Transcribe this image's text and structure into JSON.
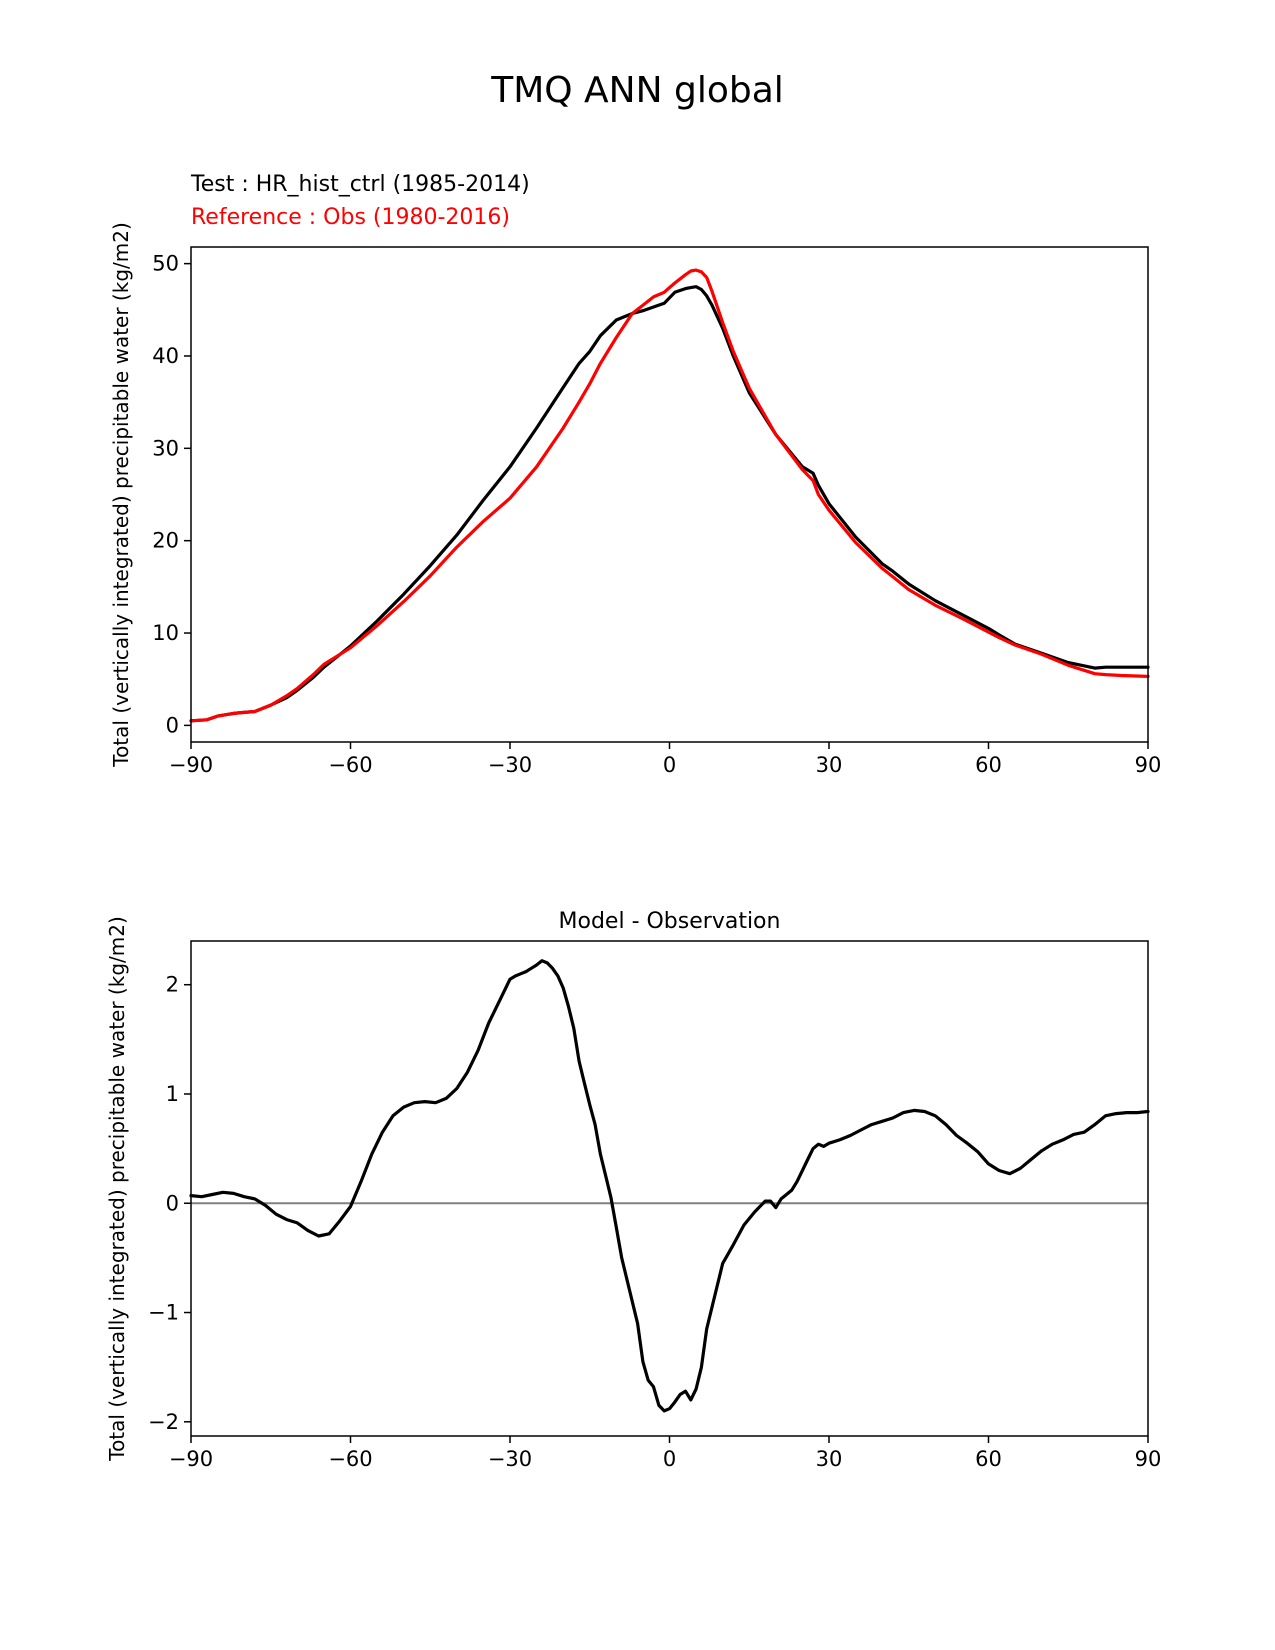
{
  "figure": {
    "title": "TMQ ANN global",
    "legend_test": "Test : HR_hist_ctrl (1985-2014)",
    "legend_ref": "Reference : Obs (1980-2016)"
  },
  "chart_data": [
    {
      "type": "line",
      "title": "",
      "xlabel": "",
      "ylabel": "Total (vertically integrated) precipitable water (kg/m2)",
      "xlim": [
        -90,
        90
      ],
      "ylim": [
        -1.8,
        51.8
      ],
      "xticks": [
        -90,
        -60,
        -30,
        0,
        30,
        60,
        90
      ],
      "xtick_labels": [
        "−90",
        "−60",
        "−30",
        "0",
        "30",
        "60",
        "90"
      ],
      "yticks": [
        0,
        10,
        20,
        30,
        40,
        50
      ],
      "ytick_labels": [
        "0",
        "10",
        "20",
        "30",
        "40",
        "50"
      ],
      "grid": false,
      "series": [
        {
          "name": "Test : HR_hist_ctrl (1985-2014)",
          "color": "#000000",
          "x": [
            -90,
            -87,
            -85,
            -82,
            -80,
            -78,
            -75,
            -72,
            -70,
            -67,
            -65,
            -60,
            -55,
            -50,
            -45,
            -40,
            -35,
            -30,
            -25,
            -20,
            -17,
            -15,
            -13,
            -10,
            -7,
            -5,
            -3,
            -1,
            0,
            1,
            3,
            4,
            5,
            6,
            7,
            8,
            10,
            12,
            15,
            20,
            25,
            27,
            28,
            30,
            35,
            40,
            42,
            45,
            50,
            55,
            60,
            62,
            65,
            70,
            75,
            80,
            82,
            85,
            90
          ],
          "y": [
            0.5,
            0.6,
            1.0,
            1.3,
            1.4,
            1.5,
            2.2,
            3.0,
            3.8,
            5.2,
            6.3,
            8.6,
            11.3,
            14.2,
            17.3,
            20.6,
            24.4,
            28.0,
            32.2,
            36.6,
            39.2,
            40.5,
            42.2,
            43.9,
            44.6,
            44.9,
            45.3,
            45.7,
            46.3,
            46.9,
            47.3,
            47.4,
            47.5,
            47.2,
            46.5,
            45.5,
            43.0,
            40.0,
            36.0,
            31.5,
            28.0,
            27.3,
            26.0,
            24.0,
            20.4,
            17.5,
            16.7,
            15.3,
            13.5,
            12.0,
            10.5,
            9.8,
            8.8,
            7.8,
            6.8,
            6.2,
            6.3,
            6.3,
            6.3
          ]
        },
        {
          "name": "Reference : Obs (1980-2016)",
          "color": "#ff0000",
          "x": [
            -90,
            -87,
            -85,
            -82,
            -80,
            -78,
            -75,
            -72,
            -70,
            -67,
            -65,
            -60,
            -55,
            -50,
            -45,
            -40,
            -35,
            -30,
            -25,
            -20,
            -17,
            -15,
            -13,
            -10,
            -7,
            -5,
            -3,
            -1,
            0,
            1,
            3,
            4,
            5,
            6,
            7,
            8,
            10,
            12,
            15,
            20,
            25,
            27,
            28,
            30,
            35,
            40,
            42,
            45,
            50,
            55,
            60,
            62,
            65,
            70,
            75,
            80,
            82,
            85,
            90
          ],
          "y": [
            0.5,
            0.6,
            1.0,
            1.3,
            1.4,
            1.5,
            2.2,
            3.2,
            4.0,
            5.5,
            6.6,
            8.4,
            10.8,
            13.4,
            16.2,
            19.3,
            22.1,
            24.6,
            28.0,
            32.2,
            35.0,
            37.0,
            39.2,
            42.0,
            44.6,
            45.5,
            46.4,
            46.9,
            47.4,
            47.9,
            48.8,
            49.2,
            49.3,
            49.1,
            48.5,
            47.0,
            43.6,
            40.5,
            36.5,
            31.5,
            27.7,
            26.5,
            25.0,
            23.3,
            19.8,
            17.0,
            16.1,
            14.7,
            13.0,
            11.6,
            10.1,
            9.5,
            8.7,
            7.7,
            6.5,
            5.6,
            5.5,
            5.4,
            5.3
          ]
        }
      ]
    },
    {
      "type": "line",
      "title": "Model - Observation",
      "xlabel": "",
      "ylabel": "Total (vertically integrated) precipitable water (kg/m2)",
      "xlim": [
        -90,
        90
      ],
      "ylim": [
        -2.13,
        2.4
      ],
      "xticks": [
        -90,
        -60,
        -30,
        0,
        30,
        60,
        90
      ],
      "xtick_labels": [
        "−90",
        "−60",
        "−30",
        "0",
        "30",
        "60",
        "90"
      ],
      "yticks": [
        -2,
        -1,
        0,
        1,
        2
      ],
      "ytick_labels": [
        "−2",
        "−1",
        "0",
        "1",
        "2"
      ],
      "grid": false,
      "zero_line": {
        "y": 0,
        "color": "#808080"
      },
      "series": [
        {
          "name": "Model - Observation",
          "color": "#000000",
          "x": [
            -90,
            -88,
            -86,
            -84,
            -82,
            -80,
            -78,
            -76,
            -74,
            -72,
            -70,
            -68,
            -66,
            -64,
            -62,
            -60,
            -58,
            -56,
            -54,
            -52,
            -50,
            -48,
            -46,
            -44,
            -42,
            -40,
            -38,
            -36,
            -34,
            -32,
            -30,
            -29,
            -28,
            -27,
            -26,
            -25,
            -24,
            -23,
            -22,
            -21,
            -20,
            -19,
            -18,
            -17,
            -16,
            -15,
            -14,
            -13,
            -12,
            -11,
            -10,
            -9,
            -8,
            -7,
            -6,
            -5,
            -4,
            -3,
            -2,
            -1,
            0,
            1,
            2,
            3,
            4,
            5,
            6,
            7,
            8,
            10,
            12,
            14,
            16,
            18,
            19,
            20,
            21,
            22,
            23,
            24,
            25,
            26,
            27,
            28,
            29,
            30,
            32,
            34,
            36,
            38,
            40,
            42,
            44,
            46,
            48,
            50,
            52,
            54,
            56,
            58,
            60,
            62,
            64,
            66,
            68,
            70,
            72,
            74,
            76,
            78,
            80,
            82,
            84,
            86,
            88,
            90
          ],
          "y": [
            0.07,
            0.06,
            0.08,
            0.1,
            0.09,
            0.06,
            0.04,
            -0.02,
            -0.1,
            -0.15,
            -0.18,
            -0.25,
            -0.3,
            -0.28,
            -0.16,
            -0.03,
            0.2,
            0.45,
            0.65,
            0.8,
            0.88,
            0.92,
            0.93,
            0.92,
            0.96,
            1.05,
            1.2,
            1.4,
            1.65,
            1.85,
            2.05,
            2.08,
            2.1,
            2.12,
            2.15,
            2.18,
            2.22,
            2.2,
            2.15,
            2.08,
            1.97,
            1.8,
            1.6,
            1.3,
            1.1,
            0.9,
            0.72,
            0.45,
            0.25,
            0.05,
            -0.22,
            -0.5,
            -0.7,
            -0.9,
            -1.1,
            -1.45,
            -1.62,
            -1.68,
            -1.85,
            -1.9,
            -1.88,
            -1.82,
            -1.75,
            -1.72,
            -1.8,
            -1.7,
            -1.5,
            -1.15,
            -0.95,
            -0.55,
            -0.38,
            -0.2,
            -0.08,
            0.02,
            0.02,
            -0.04,
            0.04,
            0.08,
            0.12,
            0.2,
            0.3,
            0.4,
            0.5,
            0.54,
            0.52,
            0.55,
            0.58,
            0.62,
            0.67,
            0.72,
            0.75,
            0.78,
            0.83,
            0.85,
            0.84,
            0.8,
            0.72,
            0.62,
            0.55,
            0.47,
            0.36,
            0.3,
            0.27,
            0.32,
            0.4,
            0.48,
            0.54,
            0.58,
            0.63,
            0.65,
            0.72,
            0.8,
            0.82,
            0.83,
            0.83,
            0.84
          ]
        }
      ]
    }
  ]
}
